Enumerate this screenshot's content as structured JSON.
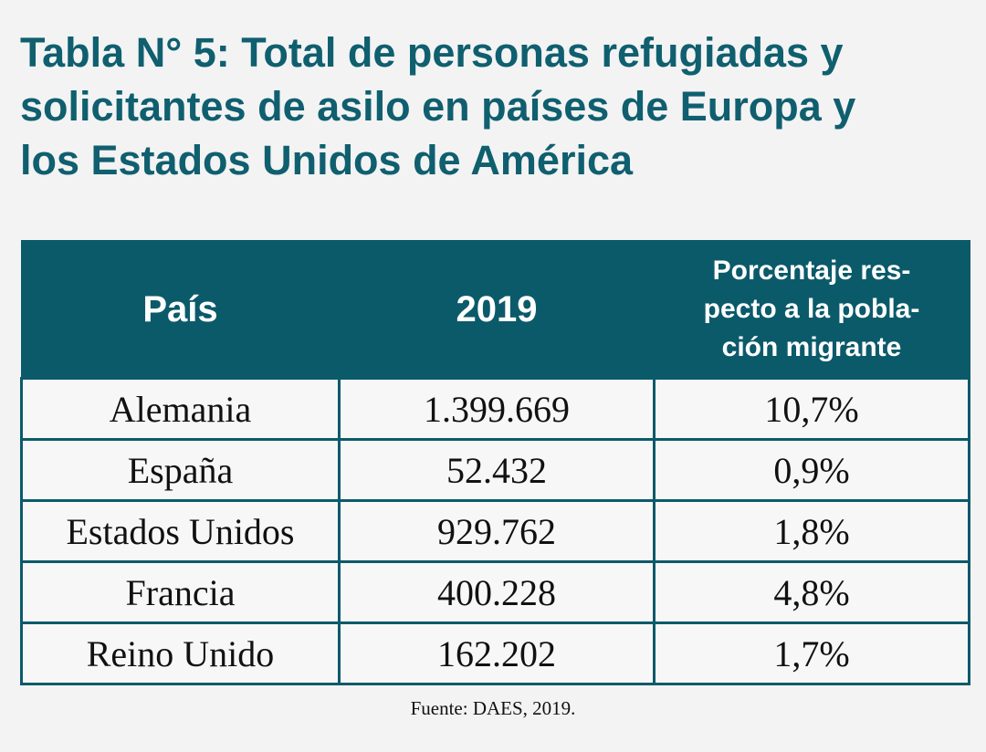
{
  "title_lines": [
    "Tabla N° 5: Total de personas refugiadas y",
    "solicitantes de asilo en países de Europa y",
    "los Estados Unidos de América"
  ],
  "table": {
    "headers": {
      "country": "País",
      "year": "2019",
      "percent_lines": [
        "Porcentaje res-",
        "pecto a la pobla-",
        "ción migrante"
      ]
    },
    "rows": [
      {
        "country": "Alemania",
        "value": "1.399.669",
        "percent": "10,7%"
      },
      {
        "country": "España",
        "value": "52.432",
        "percent": "0,9%"
      },
      {
        "country": "Estados Unidos",
        "value": "929.762",
        "percent": "1,8%"
      },
      {
        "country": "Francia",
        "value": "400.228",
        "percent": "4,8%"
      },
      {
        "country": "Reino Unido",
        "value": "162.202",
        "percent": "1,7%"
      }
    ]
  },
  "source": "Fuente: DAES, 2019.",
  "colors": {
    "teal_text": "#0f5f6f",
    "header_background": "#0b5a6a",
    "page_background": "#f3f3f3"
  }
}
